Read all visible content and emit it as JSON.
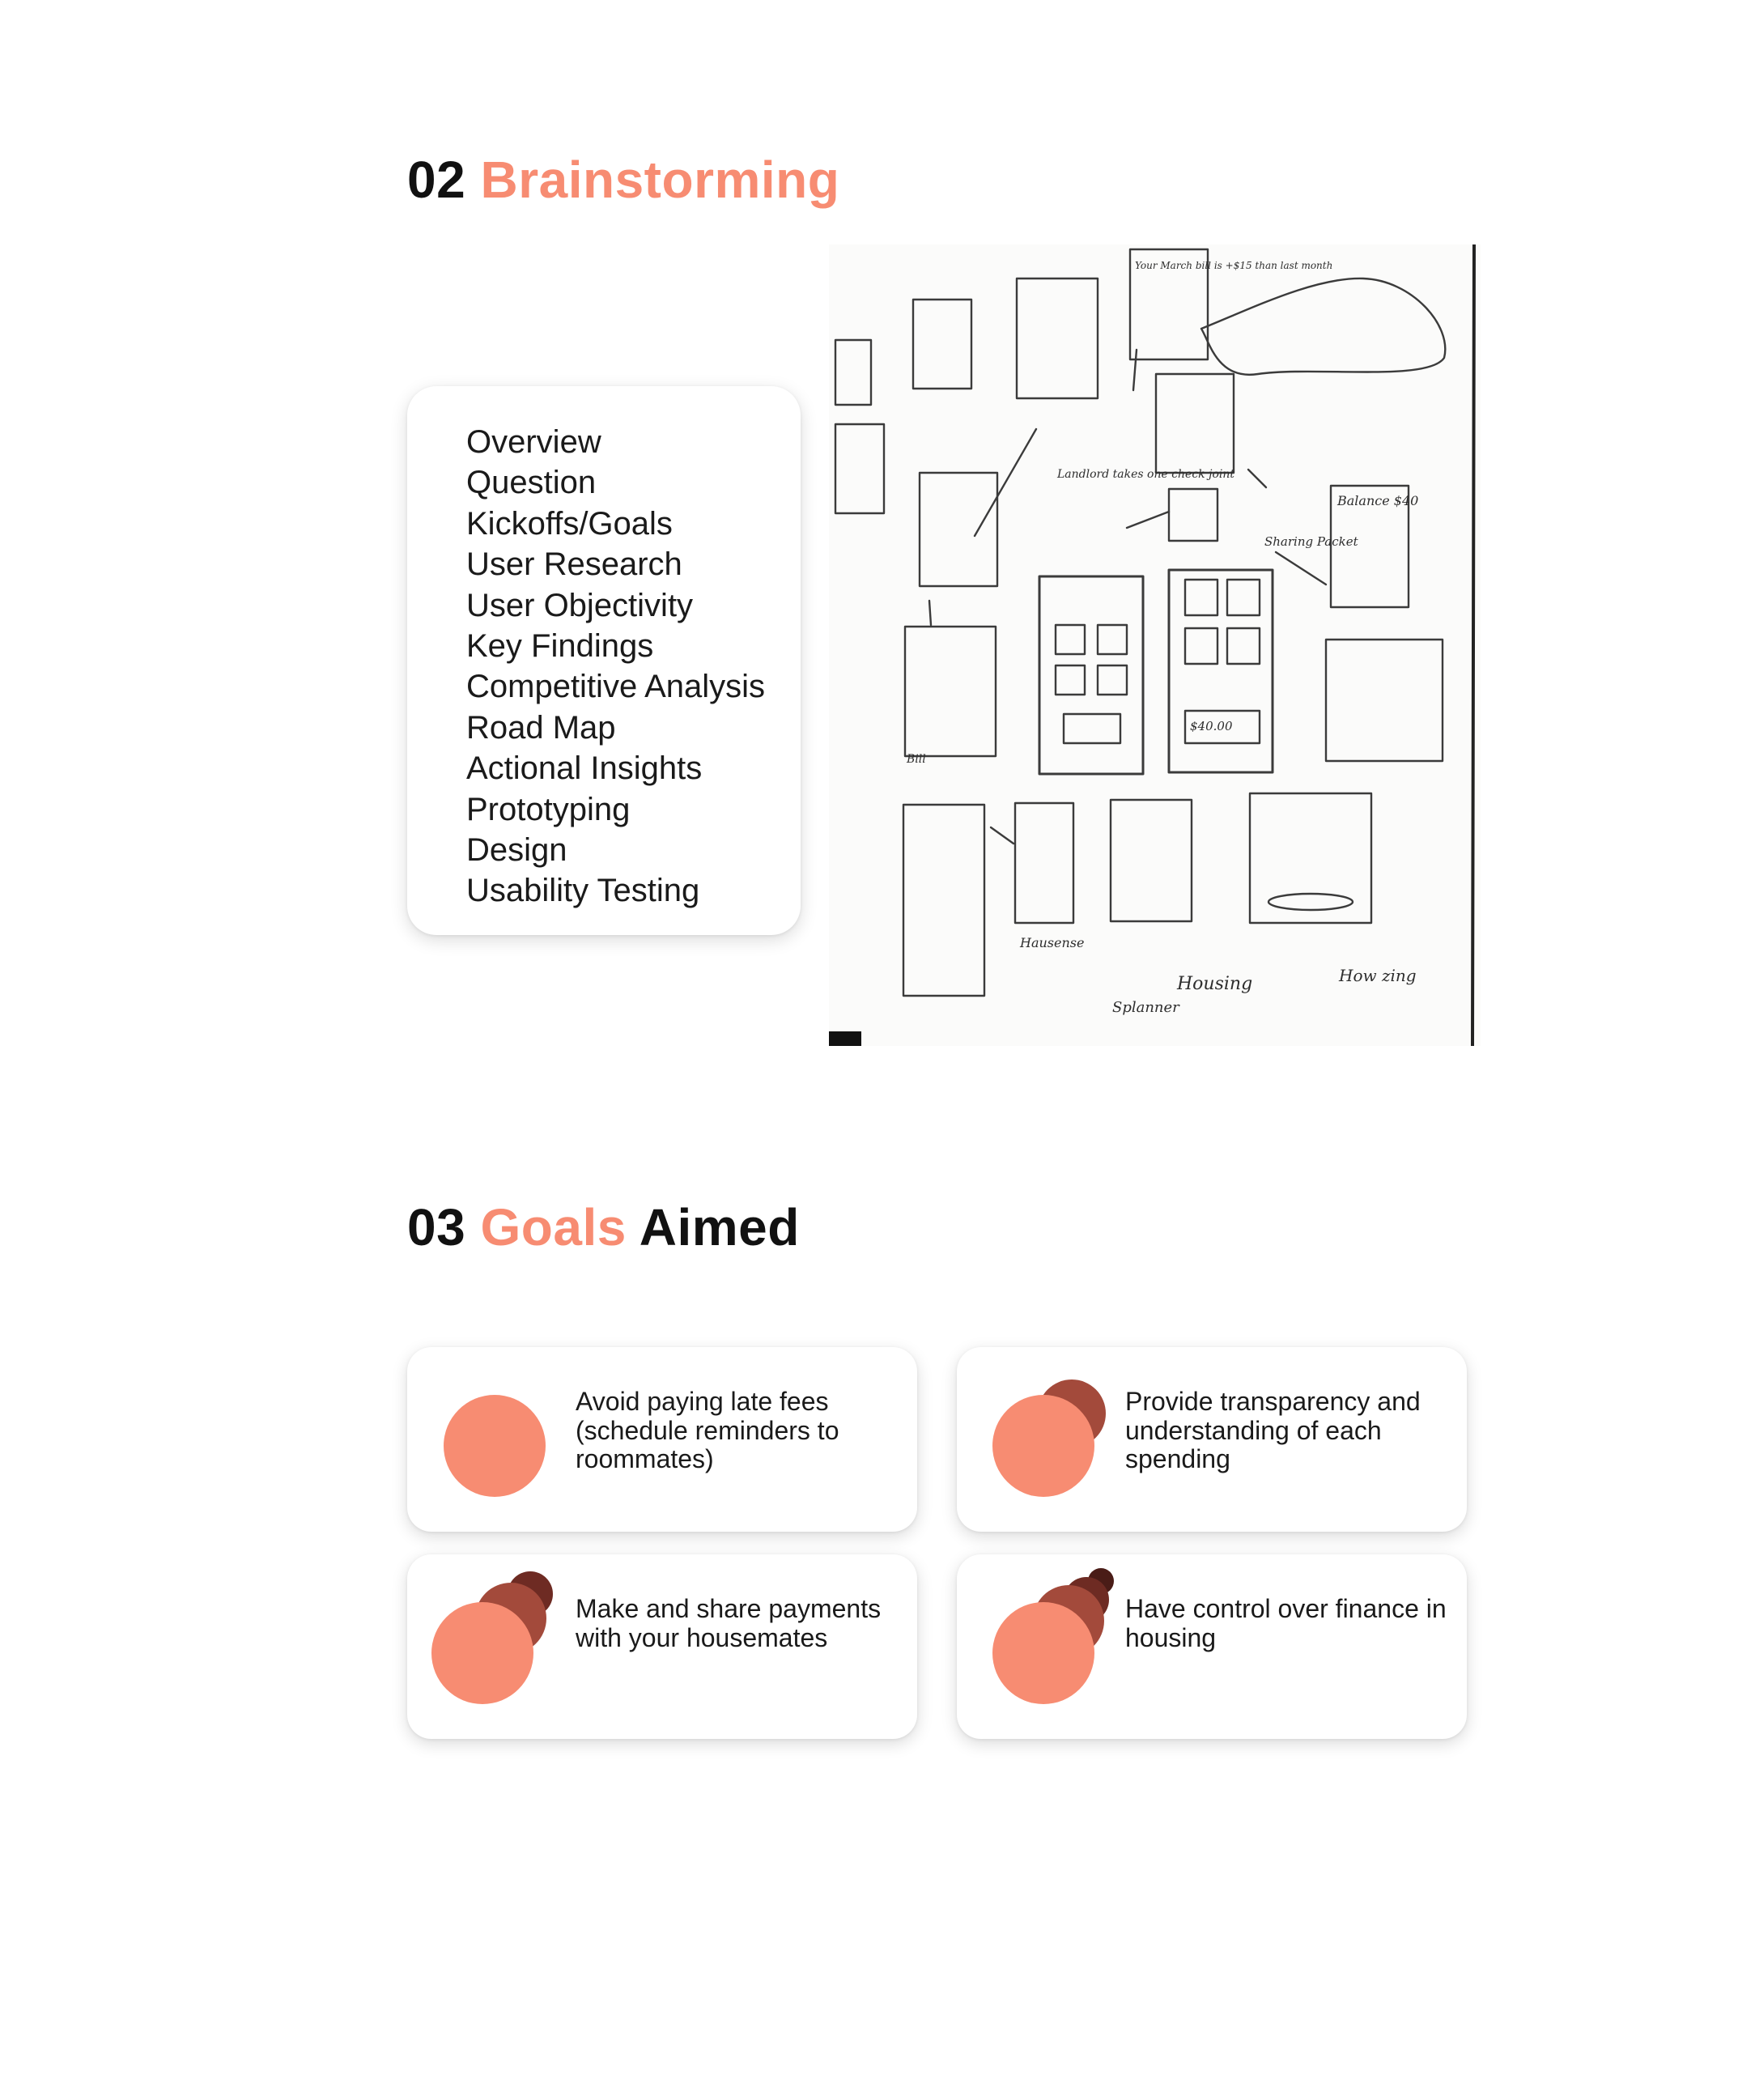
{
  "sections": {
    "brainstorming": {
      "number": "02",
      "title": "Brainstorming"
    },
    "goals": {
      "number": "03",
      "title_accent": "Goals",
      "title_rest": "Aimed"
    }
  },
  "toc": {
    "items": [
      "Overview",
      "Question",
      "Kickoffs/Goals",
      "User Research",
      "User Objectivity",
      "Key Findings",
      "Competitive Analysis",
      "Road Map",
      "Actional Insights",
      "Prototyping",
      "Design",
      "Usability Testing"
    ]
  },
  "sketch": {
    "notes": [
      "Your March bill is +$15 than last month",
      "Landlord takes one check joint",
      "Sharing Packet",
      "Balance $40",
      "$40.00",
      "Bill",
      "Housing",
      "Hausense",
      "Splanner",
      "How zing"
    ]
  },
  "goals": [
    {
      "text": "Avoid paying late fees (schedule reminders to roommates)"
    },
    {
      "text": "Provide transparency and understanding of each spending"
    },
    {
      "text": "Make and share payments with your housemates"
    },
    {
      "text": "Have control over finance in housing"
    }
  ],
  "colors": {
    "accent": "#f78c72",
    "circle_dark": "#a34a3b",
    "circle_darker": "#6e2b23",
    "text": "#111111"
  }
}
